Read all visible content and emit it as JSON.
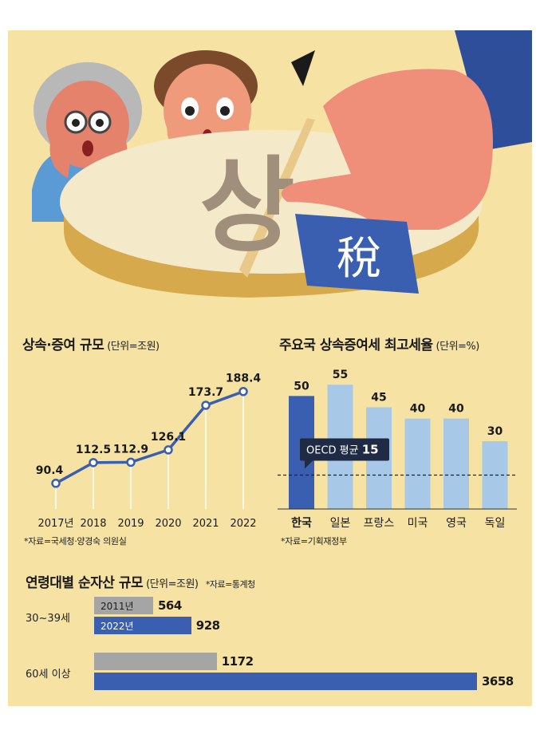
{
  "illustration": {
    "coin_glyph": "상",
    "tag_glyph": "稅"
  },
  "line_chart": {
    "title": "상속·증여 규모",
    "unit": "(단위=조원)",
    "source": "*자료=국세청·양경숙 의원실"
  },
  "bar_chart": {
    "title": "주요국 상속증여세 최고세율",
    "unit": "(단위=%)",
    "source": "*자료=기획재정부",
    "oecd_label": "OECD 평균",
    "oecd_value": "15"
  },
  "hbar_chart": {
    "title": "연령대별 순자산 규모",
    "unit": "(단위=조원)",
    "source": "*자료=통계청"
  },
  "colors": {
    "background": "#f6e3a4",
    "blue": "#3a5fb0",
    "light_blue": "#a7c8e6",
    "gray": "#a5a5a5"
  },
  "chart_data": [
    {
      "type": "line",
      "title": "상속·증여 규모",
      "ylabel": "(단위=조원)",
      "x": [
        "2017년",
        "2018",
        "2019",
        "2020",
        "2021",
        "2022"
      ],
      "values": [
        90.4,
        112.5,
        112.9,
        126.1,
        173.7,
        188.4
      ],
      "labels": [
        "90.4",
        "112.5",
        "112.9",
        "126.1",
        "173.7",
        "188.4"
      ],
      "ylim": [
        80,
        195
      ]
    },
    {
      "type": "bar",
      "title": "주요국 상속증여세 최고세율",
      "ylabel": "(단위=%)",
      "categories": [
        "한국",
        "일본",
        "프랑스",
        "미국",
        "영국",
        "독일"
      ],
      "values": [
        50,
        55,
        45,
        40,
        40,
        30
      ],
      "highlight": "한국",
      "reference_line": {
        "label": "OECD 평균",
        "value": 15
      },
      "ylim": [
        0,
        60
      ]
    },
    {
      "type": "bar",
      "orientation": "horizontal",
      "title": "연령대별 순자산 규모",
      "ylabel": "(단위=조원)",
      "categories": [
        "30~39세",
        "60세 이상"
      ],
      "series": [
        {
          "name": "2011년",
          "values": [
            564,
            1172
          ]
        },
        {
          "name": "2022년",
          "values": [
            928,
            3658
          ]
        }
      ]
    }
  ]
}
